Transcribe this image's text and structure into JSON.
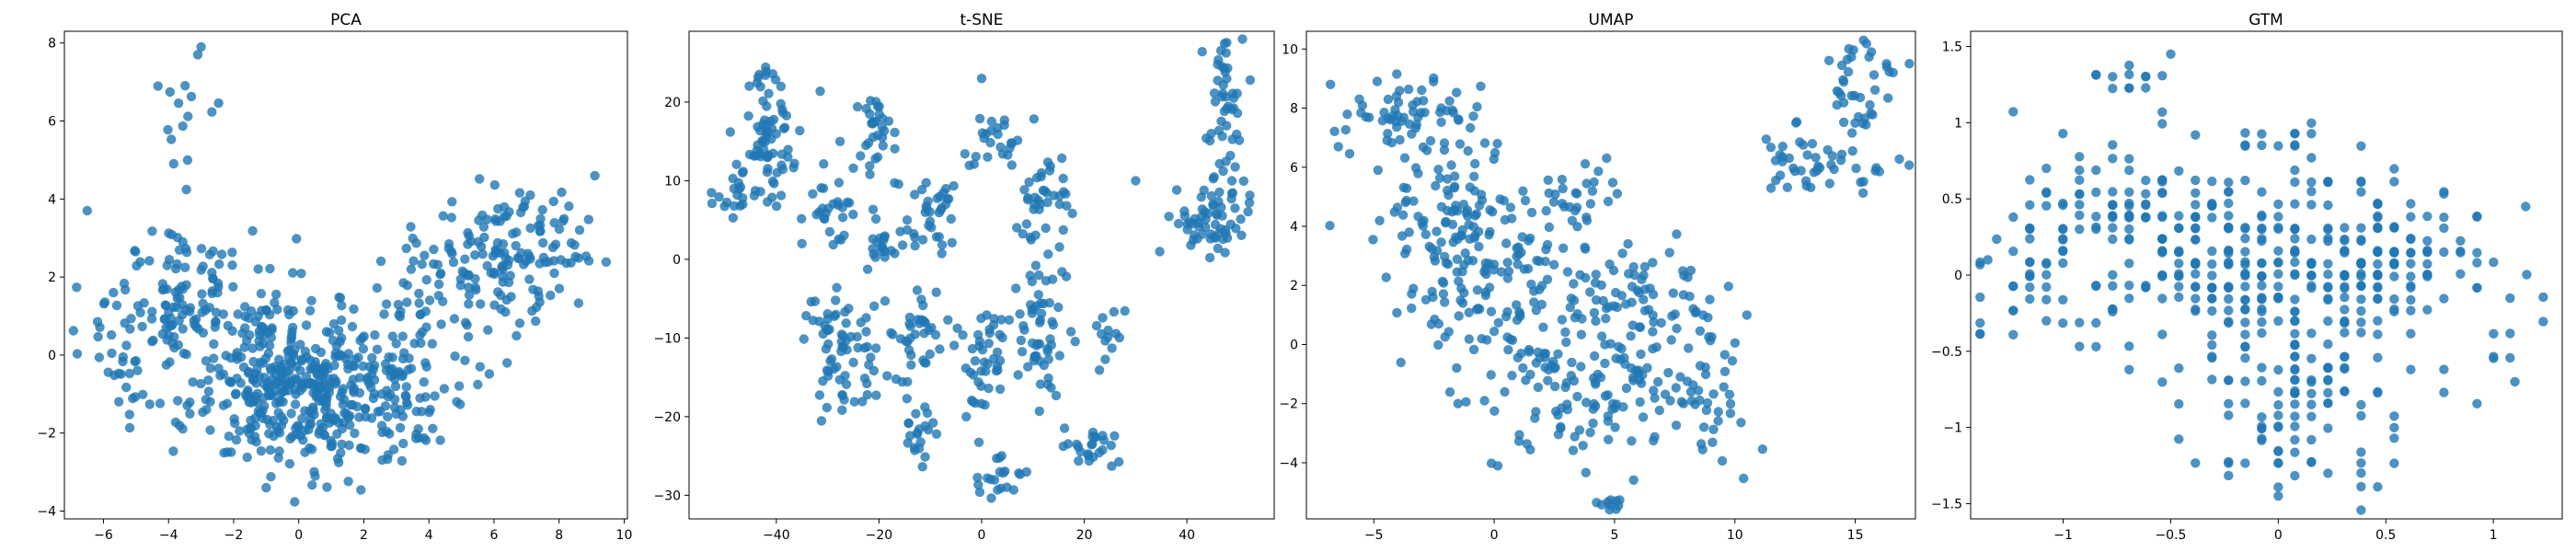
{
  "figure": {
    "background": "#ffffff",
    "point_color": "#1f77b4"
  },
  "chart_data": [
    {
      "type": "scatter",
      "title": "PCA",
      "xlabel": "",
      "ylabel": "",
      "xlim": [
        -7.2,
        10.1
      ],
      "ylim": [
        -4.2,
        8.3
      ],
      "xticks": [
        -6,
        -4,
        -2,
        0,
        2,
        4,
        6,
        8,
        10
      ],
      "yticks": [
        -4,
        -2,
        0,
        2,
        4,
        6,
        8
      ],
      "grid": false,
      "generated": true,
      "clusters": [
        {
          "cx": 0.0,
          "cy": -0.8,
          "sx": 1.6,
          "sy": 1.0,
          "n": 420
        },
        {
          "cx": -3.5,
          "cy": 1.4,
          "sx": 1.4,
          "sy": 0.9,
          "n": 130
        },
        {
          "cx": 5.5,
          "cy": 2.0,
          "sx": 1.6,
          "sy": 0.9,
          "n": 120
        },
        {
          "cx": 7.0,
          "cy": 3.0,
          "sx": 1.0,
          "sy": 0.6,
          "n": 60
        },
        {
          "cx": 3.2,
          "cy": -0.6,
          "sx": 1.0,
          "sy": 0.9,
          "n": 70
        },
        {
          "cx": -3.5,
          "cy": 6.0,
          "sx": 0.6,
          "sy": 0.8,
          "n": 14
        },
        {
          "cx": -5.5,
          "cy": -0.5,
          "sx": 0.6,
          "sy": 1.0,
          "n": 25
        }
      ],
      "extra_points": [
        [
          -3.0,
          7.9
        ],
        [
          -3.1,
          7.7
        ],
        [
          9.1,
          4.6
        ],
        [
          -6.5,
          3.7
        ],
        [
          -1.0,
          -3.4
        ]
      ]
    },
    {
      "type": "scatter",
      "title": "t-SNE",
      "xlabel": "",
      "ylabel": "",
      "xlim": [
        -57,
        57
      ],
      "ylim": [
        -33,
        29
      ],
      "xticks": [
        -40,
        -20,
        0,
        20,
        40
      ],
      "yticks": [
        -30,
        -20,
        -10,
        0,
        10,
        20
      ],
      "grid": false,
      "generated": true,
      "clusters": [
        {
          "cx": -41,
          "cy": 16,
          "sx": 3.0,
          "sy": 4.0,
          "n": 70
        },
        {
          "cx": -48,
          "cy": 9,
          "sx": 2.5,
          "sy": 2.0,
          "n": 20
        },
        {
          "cx": -28,
          "cy": 8,
          "sx": 3.0,
          "sy": 3.0,
          "n": 30
        },
        {
          "cx": -20,
          "cy": 16,
          "sx": 2.0,
          "sy": 2.0,
          "n": 30
        },
        {
          "cx": -27,
          "cy": -12,
          "sx": 4.0,
          "sy": 5.0,
          "n": 70
        },
        {
          "cx": -19,
          "cy": 2,
          "sx": 2.0,
          "sy": 2.0,
          "n": 20
        },
        {
          "cx": -10,
          "cy": 5,
          "sx": 3.0,
          "sy": 3.0,
          "n": 35
        },
        {
          "cx": -12,
          "cy": -10,
          "sx": 3.0,
          "sy": 4.0,
          "n": 40
        },
        {
          "cx": -12,
          "cy": -22,
          "sx": 2.0,
          "sy": 2.0,
          "n": 20
        },
        {
          "cx": 3,
          "cy": 15,
          "sx": 3.0,
          "sy": 2.0,
          "n": 25
        },
        {
          "cx": 1,
          "cy": -13,
          "sx": 2.5,
          "sy": 4.0,
          "n": 40
        },
        {
          "cx": 3,
          "cy": -28,
          "sx": 2.0,
          "sy": 1.5,
          "n": 20
        },
        {
          "cx": 12,
          "cy": -9,
          "sx": 3.0,
          "sy": 4.0,
          "n": 50
        },
        {
          "cx": 12,
          "cy": 5,
          "sx": 3.0,
          "sy": 4.0,
          "n": 45
        },
        {
          "cx": 22,
          "cy": -24,
          "sx": 2.5,
          "sy": 1.5,
          "n": 25
        },
        {
          "cx": 25,
          "cy": -10,
          "sx": 1.5,
          "sy": 2.0,
          "n": 12
        },
        {
          "cx": 42,
          "cy": 4,
          "sx": 3.0,
          "sy": 2.0,
          "n": 30
        },
        {
          "cx": 47,
          "cy": 20,
          "sx": 1.8,
          "sy": 5.0,
          "n": 55
        },
        {
          "cx": 47,
          "cy": 6,
          "sx": 2.0,
          "sy": 3.0,
          "n": 30
        }
      ],
      "extra_points": [
        [
          -7,
          7
        ],
        [
          -35,
          2
        ],
        [
          0,
          23
        ],
        [
          -3,
          -20
        ],
        [
          30,
          10
        ]
      ]
    },
    {
      "type": "scatter",
      "title": "UMAP",
      "xlabel": "",
      "ylabel": "",
      "xlim": [
        -7.8,
        17.5
      ],
      "ylim": [
        -5.9,
        10.6
      ],
      "xticks": [
        -5,
        0,
        5,
        10,
        15
      ],
      "yticks": [
        -6,
        -4,
        -2,
        0,
        2,
        4,
        6,
        8,
        10
      ],
      "grid": false,
      "generated": true,
      "clusters": [
        {
          "cx": -3.5,
          "cy": 7.5,
          "sx": 1.4,
          "sy": 0.8,
          "n": 70
        },
        {
          "cx": -1.5,
          "cy": 4.5,
          "sx": 1.4,
          "sy": 1.0,
          "n": 80
        },
        {
          "cx": 0.0,
          "cy": 2.0,
          "sx": 2.0,
          "sy": 1.5,
          "n": 120
        },
        {
          "cx": 2.0,
          "cy": -1.5,
          "sx": 1.5,
          "sy": 1.2,
          "n": 60
        },
        {
          "cx": 5.0,
          "cy": -2.0,
          "sx": 1.2,
          "sy": 1.0,
          "n": 40
        },
        {
          "cx": 6.0,
          "cy": 1.5,
          "sx": 2.0,
          "sy": 1.2,
          "n": 80
        },
        {
          "cx": 8.5,
          "cy": -1.5,
          "sx": 1.5,
          "sy": 1.4,
          "n": 50
        },
        {
          "cx": 3.0,
          "cy": 5.0,
          "sx": 1.2,
          "sy": 0.6,
          "n": 30
        },
        {
          "cx": 13.5,
          "cy": 6.0,
          "sx": 1.3,
          "sy": 0.6,
          "n": 45
        },
        {
          "cx": 15.0,
          "cy": 8.5,
          "sx": 0.8,
          "sy": 1.0,
          "n": 40
        },
        {
          "cx": 4.8,
          "cy": -5.4,
          "sx": 0.3,
          "sy": 0.2,
          "n": 10
        }
      ],
      "extra_points": [
        [
          -6.8,
          8.8
        ],
        [
          16.3,
          9.5
        ],
        [
          10.5,
          1.0
        ],
        [
          -1.5,
          -2.0
        ]
      ]
    },
    {
      "type": "scatter",
      "title": "GTM",
      "xlabel": "",
      "ylabel": "",
      "xlim": [
        -1.43,
        1.32
      ],
      "ylim": [
        -1.6,
        1.6
      ],
      "xticks": [
        -1.0,
        -0.5,
        0.0,
        0.5,
        1.0
      ],
      "yticks": [
        -1.5,
        -1.0,
        -0.5,
        0.0,
        0.5,
        1.0,
        1.5
      ],
      "grid": false,
      "generated": true,
      "lattice_step": 0.077,
      "clusters": [
        {
          "cx": -0.2,
          "cy": 0.15,
          "sx": 0.35,
          "sy": 0.3,
          "n": 230
        },
        {
          "cx": 0.5,
          "cy": 0.15,
          "sx": 0.2,
          "sy": 0.2,
          "n": 110
        },
        {
          "cx": -0.9,
          "cy": 0.4,
          "sx": 0.2,
          "sy": 0.25,
          "n": 60
        },
        {
          "cx": 0.1,
          "cy": -0.6,
          "sx": 0.25,
          "sy": 0.2,
          "n": 60
        },
        {
          "cx": 0.1,
          "cy": -1.1,
          "sx": 0.2,
          "sy": 0.2,
          "n": 45
        },
        {
          "cx": -0.7,
          "cy": 1.3,
          "sx": 0.08,
          "sy": 0.05,
          "n": 12
        },
        {
          "cx": 0.0,
          "cy": 0.9,
          "sx": 0.1,
          "sy": 0.05,
          "n": 12
        },
        {
          "cx": 1.0,
          "cy": -0.4,
          "sx": 0.15,
          "sy": 0.25,
          "n": 15
        },
        {
          "cx": -1.2,
          "cy": -0.1,
          "sx": 0.1,
          "sy": 0.15,
          "n": 20
        }
      ],
      "extra_points": [
        [
          -0.5,
          1.45
        ],
        [
          1.15,
          0.45
        ],
        [
          1.1,
          -0.7
        ],
        [
          -1.35,
          0.1
        ],
        [
          0.0,
          -1.45
        ]
      ]
    }
  ]
}
